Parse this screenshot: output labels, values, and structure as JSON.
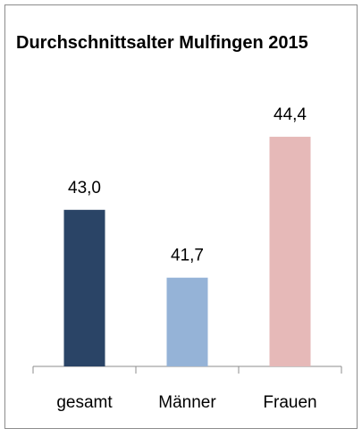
{
  "chart_data": {
    "type": "bar",
    "title": "Durchschnittsalter Mulfingen 2015",
    "categories": [
      "gesamt",
      "Männer",
      "Frauen"
    ],
    "values": [
      43.0,
      41.7,
      44.4
    ],
    "value_labels": [
      "43,0",
      "41,7",
      "44,4"
    ],
    "colors": [
      "#2a4466",
      "#95b3d7",
      "#e6b9b8"
    ],
    "ylim": [
      40,
      45
    ]
  }
}
